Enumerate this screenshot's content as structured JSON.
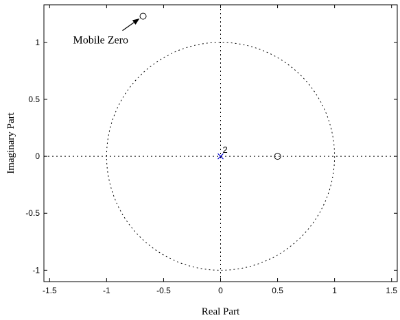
{
  "chart_data": {
    "type": "scatter",
    "title": "",
    "xlabel": "Real Part",
    "ylabel": "Imaginary Part",
    "xlim": [
      -1.55,
      1.55
    ],
    "ylim": [
      -1.1,
      1.33
    ],
    "xticks": [
      -1.5,
      -1,
      -0.5,
      0,
      0.5,
      1,
      1.5
    ],
    "xtick_labels": [
      "-1.5",
      "-1",
      "-0.5",
      "0",
      "0.5",
      "1",
      "1.5"
    ],
    "yticks": [
      -1,
      -0.5,
      0,
      0.5,
      1
    ],
    "ytick_labels": [
      "-1",
      "-0.5",
      "0",
      "0.5",
      "1"
    ],
    "unit_circle": true,
    "poles": [
      {
        "x": 0,
        "y": 0,
        "multiplicity_label": "2"
      }
    ],
    "zeros": [
      {
        "x": 0.5,
        "y": 0
      },
      {
        "x": -0.68,
        "y": 1.23
      }
    ],
    "annotation": {
      "text": "Mobile Zero",
      "target_x": -0.68,
      "target_y": 1.23
    },
    "colors": {
      "pole": "#0000cc",
      "zero": "#000000",
      "grid": "#000000"
    }
  }
}
